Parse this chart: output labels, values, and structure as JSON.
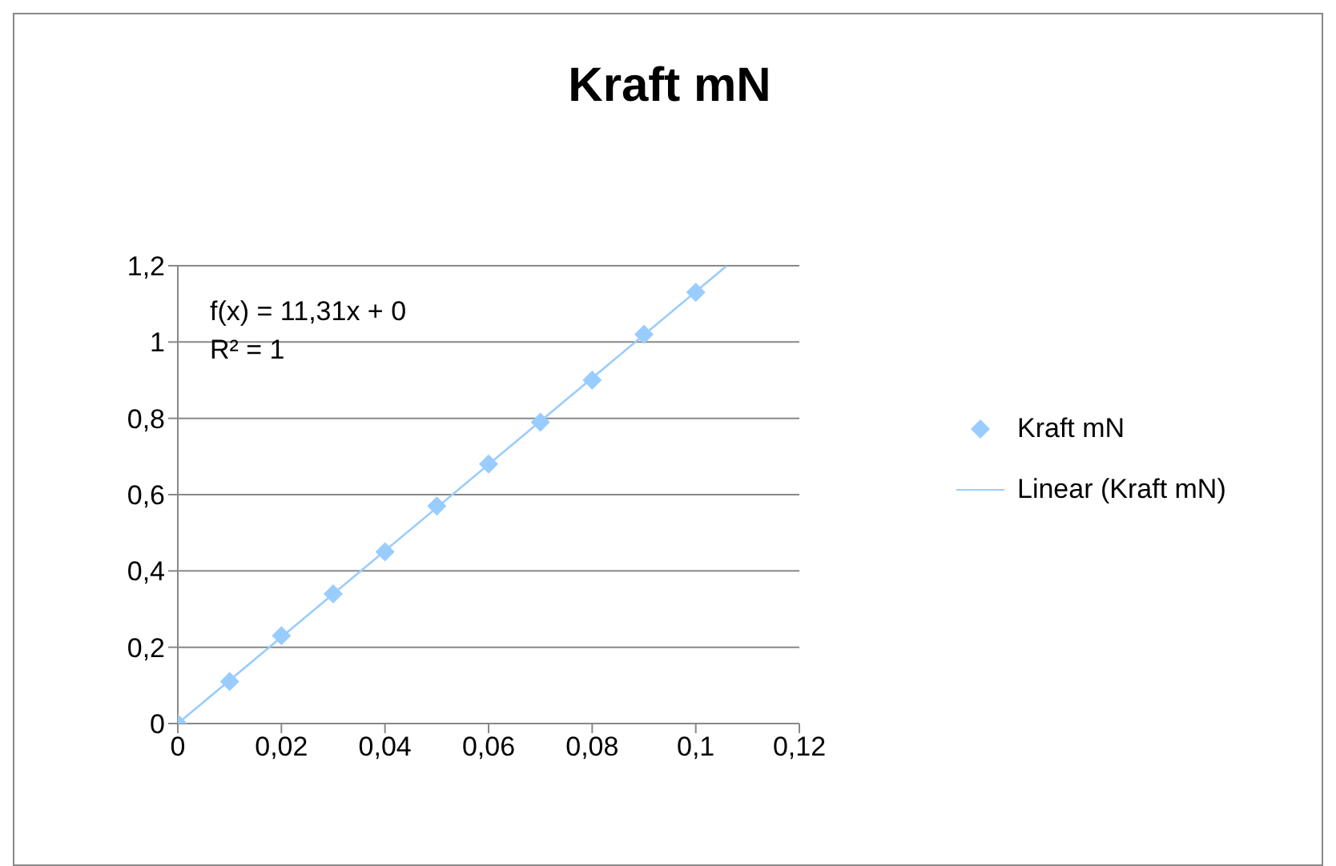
{
  "chart_data": {
    "type": "scatter",
    "title": "Kraft mN",
    "x": [
      0,
      0.01,
      0.02,
      0.03,
      0.04,
      0.05,
      0.06,
      0.07,
      0.08,
      0.09,
      0.1
    ],
    "series": [
      {
        "name": "Kraft mN",
        "color": "#99ccff",
        "values": [
          0,
          0.11,
          0.23,
          0.34,
          0.45,
          0.57,
          0.68,
          0.79,
          0.9,
          1.02,
          1.13
        ]
      },
      {
        "name": "Linear (Kraft mN)",
        "type": "line",
        "marker": "none",
        "color": "#99ccff",
        "x": [
          0,
          0.106
        ],
        "values": [
          0,
          1.2
        ]
      }
    ],
    "xlim": [
      0,
      0.12
    ],
    "xticks": [
      0,
      {
        "value": 0.02,
        "label": "0,02"
      },
      {
        "value": 0.04,
        "label": "0,04"
      },
      {
        "value": 0.06,
        "label": "0,06"
      },
      {
        "value": 0.08,
        "label": "0,08"
      },
      {
        "value": 0.1,
        "label": "0,1"
      },
      {
        "value": 0.12,
        "label": "0,12"
      }
    ],
    "ylim": [
      0,
      1.2
    ],
    "yticks": [
      0,
      {
        "value": 0.2,
        "label": "0,2"
      },
      {
        "value": 0.4,
        "label": "0,4"
      },
      {
        "value": 0.6,
        "label": "0,6"
      },
      {
        "value": 0.8,
        "label": "0,8"
      },
      1,
      {
        "value": 1.2,
        "label": "1,2"
      }
    ],
    "annotations": [
      "f(x) = 11,31x + 0",
      "R² = 1"
    ],
    "grid": "y",
    "legend": "right",
    "marker": "diamond"
  }
}
